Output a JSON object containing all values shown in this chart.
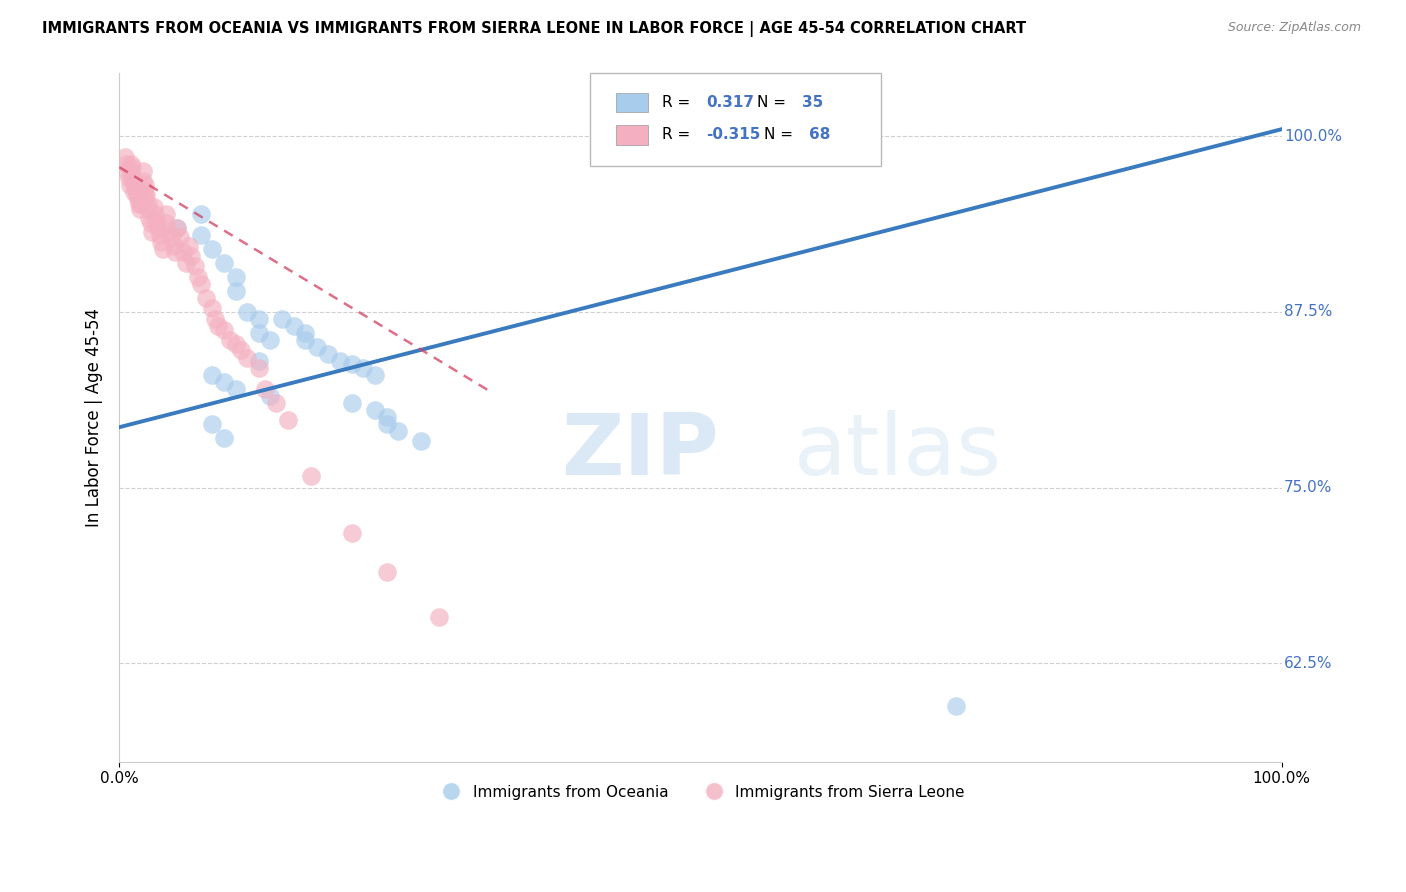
{
  "title": "IMMIGRANTS FROM OCEANIA VS IMMIGRANTS FROM SIERRA LEONE IN LABOR FORCE | AGE 45-54 CORRELATION CHART",
  "source": "Source: ZipAtlas.com",
  "ylabel": "In Labor Force | Age 45-54",
  "y_ticks": [
    0.625,
    0.75,
    0.875,
    1.0
  ],
  "y_tick_labels": [
    "62.5%",
    "75.0%",
    "87.5%",
    "100.0%"
  ],
  "x_range": [
    0.0,
    1.0
  ],
  "y_range": [
    0.555,
    1.045
  ],
  "legend_blue_r": "0.317",
  "legend_blue_n": "35",
  "legend_pink_r": "-0.315",
  "legend_pink_n": "68",
  "blue_color": "#a8ccec",
  "pink_color": "#f4b0c0",
  "blue_line_color": "#3a7bbf",
  "pink_line_color": "#d04060",
  "blue_scatter_x": [
    0.05,
    0.07,
    0.07,
    0.08,
    0.09,
    0.1,
    0.1,
    0.11,
    0.12,
    0.12,
    0.13,
    0.14,
    0.15,
    0.16,
    0.16,
    0.17,
    0.18,
    0.19,
    0.2,
    0.21,
    0.22,
    0.12,
    0.08,
    0.09,
    0.1,
    0.13,
    0.2,
    0.22,
    0.23,
    0.08,
    0.23,
    0.24,
    0.09,
    0.26,
    0.72
  ],
  "blue_scatter_y": [
    0.935,
    0.945,
    0.93,
    0.92,
    0.91,
    0.9,
    0.89,
    0.875,
    0.87,
    0.86,
    0.855,
    0.87,
    0.865,
    0.86,
    0.855,
    0.85,
    0.845,
    0.84,
    0.838,
    0.835,
    0.83,
    0.84,
    0.83,
    0.825,
    0.82,
    0.815,
    0.81,
    0.805,
    0.8,
    0.795,
    0.795,
    0.79,
    0.785,
    0.783,
    0.595
  ],
  "pink_scatter_x": [
    0.005,
    0.006,
    0.007,
    0.008,
    0.009,
    0.01,
    0.01,
    0.011,
    0.011,
    0.012,
    0.013,
    0.013,
    0.014,
    0.015,
    0.016,
    0.017,
    0.018,
    0.019,
    0.02,
    0.02,
    0.021,
    0.022,
    0.022,
    0.023,
    0.025,
    0.025,
    0.026,
    0.027,
    0.028,
    0.03,
    0.031,
    0.032,
    0.033,
    0.035,
    0.036,
    0.038,
    0.04,
    0.04,
    0.042,
    0.045,
    0.047,
    0.048,
    0.05,
    0.052,
    0.055,
    0.057,
    0.06,
    0.062,
    0.065,
    0.068,
    0.07,
    0.075,
    0.08,
    0.082,
    0.085,
    0.09,
    0.095,
    0.1,
    0.105,
    0.11,
    0.12,
    0.125,
    0.135,
    0.145,
    0.165,
    0.2,
    0.23,
    0.275
  ],
  "pink_scatter_y": [
    0.985,
    0.98,
    0.975,
    0.97,
    0.965,
    0.98,
    0.975,
    0.978,
    0.97,
    0.968,
    0.965,
    0.96,
    0.962,
    0.958,
    0.955,
    0.952,
    0.948,
    0.952,
    0.975,
    0.968,
    0.962,
    0.958,
    0.965,
    0.958,
    0.952,
    0.948,
    0.942,
    0.938,
    0.932,
    0.95,
    0.945,
    0.94,
    0.935,
    0.93,
    0.925,
    0.92,
    0.945,
    0.938,
    0.932,
    0.928,
    0.922,
    0.918,
    0.935,
    0.928,
    0.918,
    0.91,
    0.922,
    0.915,
    0.908,
    0.9,
    0.895,
    0.885,
    0.878,
    0.87,
    0.865,
    0.862,
    0.855,
    0.852,
    0.848,
    0.842,
    0.835,
    0.82,
    0.81,
    0.798,
    0.758,
    0.718,
    0.69,
    0.658
  ],
  "blue_trendline_x": [
    0.0,
    1.0
  ],
  "blue_trendline_y": [
    0.793,
    1.005
  ],
  "pink_trendline_x": [
    0.0,
    0.32
  ],
  "pink_trendline_y": [
    0.978,
    0.818
  ],
  "bottom_legend_1": "Immigrants from Oceania",
  "bottom_legend_2": "Immigrants from Sierra Leone"
}
